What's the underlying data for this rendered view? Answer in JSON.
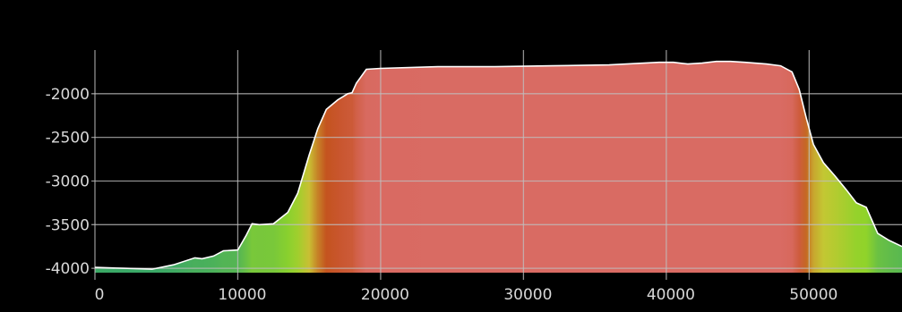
{
  "chart_data": {
    "type": "area",
    "title": "",
    "xlabel": "",
    "ylabel": "",
    "xlim": [
      0,
      56500
    ],
    "ylim": [
      -4050,
      -1500
    ],
    "grid": true,
    "x_ticks": [
      0,
      10000,
      20000,
      30000,
      40000,
      50000
    ],
    "x_tick_labels": [
      "0",
      "10000",
      "20000",
      "30000",
      "40000",
      "50000"
    ],
    "y_ticks": [
      -2000,
      -2500,
      -3000,
      -3500,
      -4000
    ],
    "y_tick_labels": [
      "-2000",
      "-2500",
      "-3000",
      "-3500",
      "-4000"
    ],
    "series": [
      {
        "x": [
          0,
          2000,
          4000,
          5500,
          7000,
          7500,
          8300,
          9000,
          10000,
          10600,
          11000,
          11500,
          12500,
          13500,
          14200,
          15000,
          15600,
          16200,
          17000,
          17700,
          18000,
          18300,
          19000,
          20000,
          24000,
          28000,
          32000,
          36000,
          39500,
          40500,
          41500,
          42500,
          43500,
          44500,
          45500,
          47000,
          48000,
          48800,
          49300,
          49800,
          50300,
          51000,
          51800,
          52600,
          53300,
          54000,
          54800,
          55600,
          56500
        ],
        "y": [
          -3990,
          -4000,
          -4010,
          -3960,
          -3880,
          -3890,
          -3860,
          -3800,
          -3790,
          -3620,
          -3490,
          -3500,
          -3490,
          -3360,
          -3140,
          -2700,
          -2400,
          -2180,
          -2070,
          -2000,
          -1990,
          -1880,
          -1720,
          -1710,
          -1690,
          -1690,
          -1680,
          -1670,
          -1640,
          -1640,
          -1660,
          -1650,
          -1630,
          -1630,
          -1640,
          -1660,
          -1680,
          -1750,
          -1950,
          -2280,
          -2580,
          -2790,
          -2940,
          -3100,
          -3250,
          -3300,
          -3600,
          -3680,
          -3750
        ]
      }
    ],
    "colors": {
      "background": "#000000",
      "grid": "#bfbfbf",
      "outline": "#ffffff",
      "low": "#3aa866",
      "mid": "#c9c634",
      "high": "#d96b63"
    }
  }
}
